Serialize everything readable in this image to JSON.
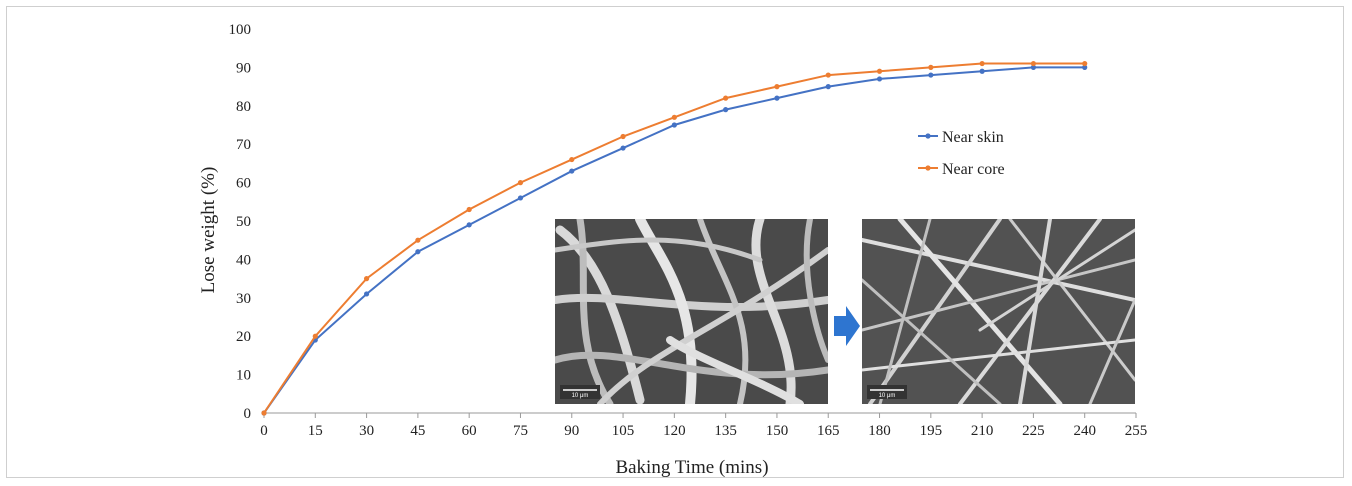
{
  "chart_data": {
    "type": "line",
    "xlabel": "Baking Time (mins)",
    "ylabel": "Lose weight (%)",
    "xlim": [
      0,
      255
    ],
    "ylim": [
      0,
      100
    ],
    "xticks": [
      0,
      15,
      30,
      45,
      60,
      75,
      90,
      105,
      120,
      135,
      150,
      165,
      180,
      195,
      210,
      225,
      240,
      255
    ],
    "yticks": [
      0,
      10,
      20,
      30,
      40,
      50,
      60,
      70,
      80,
      90,
      100
    ],
    "grid": false,
    "legend_position": "right",
    "x": [
      0,
      15,
      30,
      45,
      60,
      75,
      90,
      105,
      120,
      135,
      150,
      165,
      180,
      195,
      210,
      225,
      240
    ],
    "series": [
      {
        "name": "Near skin",
        "color": "#4472C4",
        "values": [
          0,
          19,
          31,
          42,
          49,
          56,
          63,
          69,
          75,
          79,
          82,
          85,
          87,
          88,
          89,
          90,
          90
        ]
      },
      {
        "name": "Near core",
        "color": "#ED7D31",
        "values": [
          0,
          20,
          35,
          45,
          53,
          60,
          66,
          72,
          77,
          82,
          85,
          88,
          89,
          90,
          91,
          91,
          91
        ]
      }
    ],
    "insets": [
      {
        "name": "sem-image-left",
        "scale_label": "10 μm"
      },
      {
        "name": "sem-image-right",
        "scale_label": "10 μm"
      }
    ],
    "arrow_color": "#2E75D0"
  }
}
